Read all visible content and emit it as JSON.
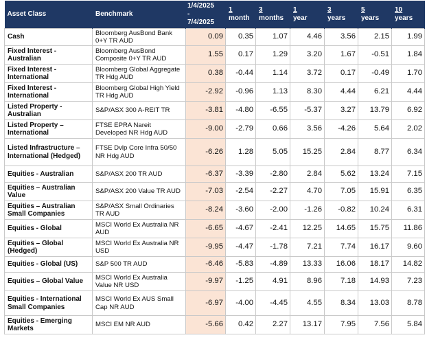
{
  "headers": {
    "asset_class": "Asset Class",
    "benchmark": "Benchmark",
    "period_line1": "1/4/2025",
    "period_line2": "-",
    "period_line3": "7/4/2025",
    "m1_num": "1",
    "m1_unit": "month",
    "m3_num": "3",
    "m3_unit": "months",
    "y1_num": "1",
    "y1_unit": "year",
    "y3_num": "3",
    "y3_unit": "years",
    "y5_num": "5",
    "y5_unit": "years",
    "y10_num": "10",
    "y10_unit": "years"
  },
  "rows": [
    {
      "asset": "Cash",
      "benchmark": "Bloomberg AusBond Bank 0+Y TR AUD",
      "period": "0.09",
      "m1": "0.35",
      "m3": "1.07",
      "y1": "4.46",
      "y3": "3.56",
      "y5": "2.15",
      "y10": "1.99"
    },
    {
      "asset": "Fixed Interest - Australian",
      "benchmark": "Bloomberg AusBond Composite 0+Y TR AUD",
      "period": "1.55",
      "m1": "0.17",
      "m3": "1.29",
      "y1": "3.20",
      "y3": "1.67",
      "y5": "-0.51",
      "y10": "1.84"
    },
    {
      "asset": "Fixed Interest - International",
      "benchmark": "Bloomberg Global Aggregate TR Hdg AUD",
      "period": "0.38",
      "m1": "-0.44",
      "m3": "1.14",
      "y1": "3.72",
      "y3": "0.17",
      "y5": "-0.49",
      "y10": "1.70"
    },
    {
      "asset": "Fixed Interest - International",
      "benchmark": "Bloomberg Global High Yield TR Hdg AUD",
      "period": "-2.92",
      "m1": "-0.96",
      "m3": "1.13",
      "y1": "8.30",
      "y3": "4.44",
      "y5": "6.21",
      "y10": "4.44"
    },
    {
      "asset": "Listed Property - Australian",
      "benchmark": "S&P/ASX 300 A-REIT TR",
      "period": "-3.81",
      "m1": "-4.80",
      "m3": "-6.55",
      "y1": "-5.37",
      "y3": "3.27",
      "y5": "13.79",
      "y10": "6.92"
    },
    {
      "asset": "Listed Property – International",
      "benchmark": "FTSE EPRA Nareit Developed NR Hdg AUD",
      "period": "-9.00",
      "m1": "-2.79",
      "m3": "0.66",
      "y1": "3.56",
      "y3": "-4.26",
      "y5": "5.64",
      "y10": "2.02"
    },
    {
      "asset": "Listed Infrastructure – International (Hedged)",
      "benchmark": "FTSE Dvlp Core Infra 50/50 NR Hdg AUD",
      "period": "-6.26",
      "m1": "1.28",
      "m3": "5.05",
      "y1": "15.25",
      "y3": "2.84",
      "y5": "8.77",
      "y10": "6.34"
    },
    {
      "asset": "Equities - Australian",
      "benchmark": "S&P/ASX 200 TR AUD",
      "period": "-6.37",
      "m1": "-3.39",
      "m3": "-2.80",
      "y1": "2.84",
      "y3": "5.62",
      "y5": "13.24",
      "y10": "7.15"
    },
    {
      "asset": "Equities – Australian Value",
      "benchmark": "S&P/ASX 200 Value TR AUD",
      "period": "-7.03",
      "m1": "-2.54",
      "m3": "-2.27",
      "y1": "4.70",
      "y3": "7.05",
      "y5": "15.91",
      "y10": "6.35"
    },
    {
      "asset": "Equities – Australian Small Companies",
      "benchmark": "S&P/ASX Small Ordinaries TR AUD",
      "period": "-8.24",
      "m1": "-3.60",
      "m3": "-2.00",
      "y1": "-1.26",
      "y3": "-0.82",
      "y5": "10.24",
      "y10": "6.31"
    },
    {
      "asset": "Equities - Global",
      "benchmark": "MSCI World Ex Australia NR AUD",
      "period": "-6.65",
      "m1": "-4.67",
      "m3": "-2.41",
      "y1": "12.25",
      "y3": "14.65",
      "y5": "15.75",
      "y10": "11.86"
    },
    {
      "asset": "Equities – Global (Hedged)",
      "benchmark": "MSCI World Ex Australia NR USD",
      "period": "-9.95",
      "m1": "-4.47",
      "m3": "-1.78",
      "y1": "7.21",
      "y3": "7.74",
      "y5": "16.17",
      "y10": "9.60"
    },
    {
      "asset": "Equities - Global (US)",
      "benchmark": "S&P 500 TR AUD",
      "period": "-6.46",
      "m1": "-5.83",
      "m3": "-4.89",
      "y1": "13.33",
      "y3": "16.06",
      "y5": "18.17",
      "y10": "14.82"
    },
    {
      "asset": "Equities – Global Value",
      "benchmark": "MSCI World Ex Australia Value NR USD",
      "period": "-9.97",
      "m1": "-1.25",
      "m3": "4.91",
      "y1": "8.96",
      "y3": "7.18",
      "y5": "14.93",
      "y10": "7.23"
    },
    {
      "asset": "Equities - International Small Companies",
      "benchmark": "MSCI World Ex AUS Small Cap NR AUD",
      "period": "-6.97",
      "m1": "-4.00",
      "m3": "-4.45",
      "y1": "4.55",
      "y3": "8.34",
      "y5": "13.03",
      "y10": "8.78"
    },
    {
      "asset": "Equities - Emerging Markets",
      "benchmark": "MSCI EM NR AUD",
      "period": "-5.66",
      "m1": "0.42",
      "m3": "2.27",
      "y1": "13.17",
      "y3": "7.95",
      "y5": "7.56",
      "y10": "5.84"
    }
  ]
}
